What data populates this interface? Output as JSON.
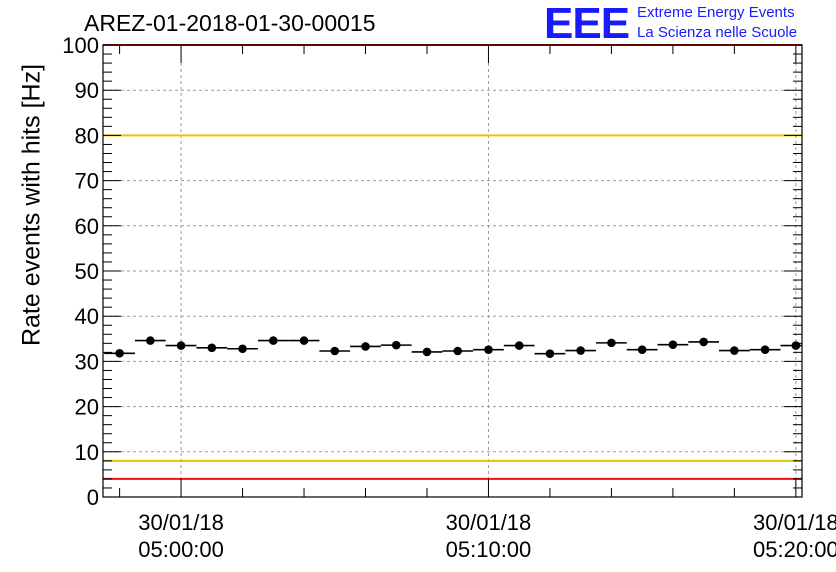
{
  "header": {
    "run_title": "AREZ-01-2018-01-30-00015",
    "logo_text": "EEE",
    "logo_line1": "Extreme Energy Events",
    "logo_line2": "La Scienza nelle Scuole"
  },
  "chart_data": {
    "type": "scatter",
    "title": "AREZ-01-2018-01-30-00015",
    "xlabel": "",
    "ylabel": "Rate events with hits [Hz]",
    "ylim": [
      0,
      100
    ],
    "y_ticks": [
      0,
      10,
      20,
      30,
      40,
      50,
      60,
      70,
      80,
      90,
      100
    ],
    "grid": true,
    "x_unit": "minutes",
    "xlim": [
      -2.54,
      20.2
    ],
    "x_ticks": [
      {
        "x": 0,
        "date": "30/01/18",
        "time": "05:00:00"
      },
      {
        "x": 10,
        "date": "30/01/18",
        "time": "05:10:00"
      },
      {
        "x": 20,
        "date": "30/01/18",
        "time": "05:20:00"
      }
    ],
    "bin_width": 1,
    "series": [
      {
        "name": "rate",
        "x": [
          -2.0,
          -1.0,
          0.0,
          1.0,
          2.0,
          3.0,
          4.0,
          5.0,
          6.0,
          7.0,
          8.0,
          9.0,
          10.0,
          11.0,
          12.0,
          13.0,
          14.0,
          15.0,
          16.0,
          17.0,
          18.0,
          19.0,
          20.0
        ],
        "values": [
          31.8,
          34.6,
          33.5,
          33.0,
          32.8,
          34.6,
          34.6,
          32.3,
          33.3,
          33.6,
          32.1,
          32.3,
          32.6,
          33.5,
          31.7,
          32.4,
          34.1,
          32.6,
          33.7,
          34.3,
          32.4,
          32.6,
          33.5
        ]
      }
    ],
    "reference_lines": [
      {
        "label": "upper alarm",
        "y": 100,
        "color": "#ee1111"
      },
      {
        "label": "upper warning",
        "y": 80,
        "color": "#e8c400"
      },
      {
        "label": "lower warning",
        "y": 8,
        "color": "#e8c400"
      },
      {
        "label": "lower alarm",
        "y": 4,
        "color": "#ee1111"
      }
    ]
  }
}
